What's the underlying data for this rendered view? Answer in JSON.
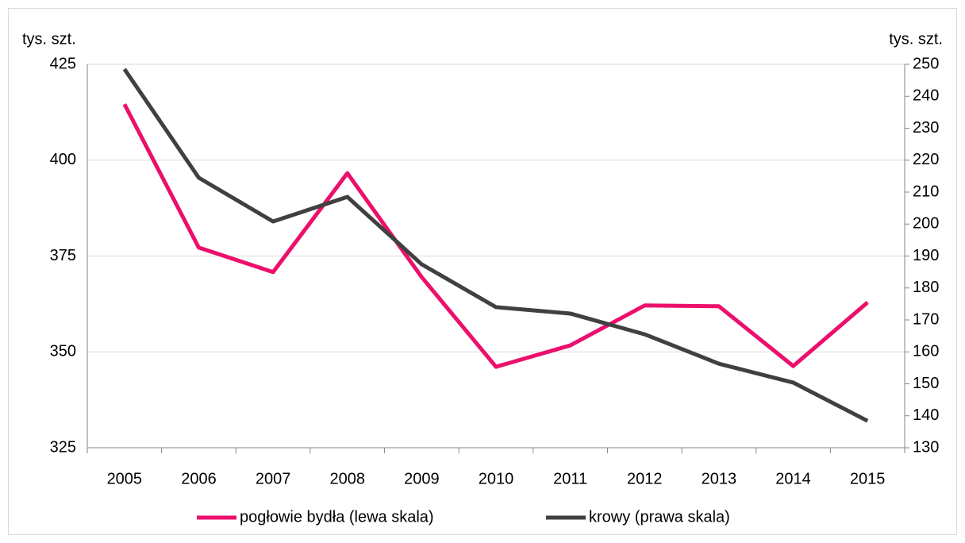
{
  "chart_data": {
    "type": "line",
    "ylabel": "tys. szt.",
    "y2label": "tys. szt.",
    "categories": [
      "2005",
      "2006",
      "2007",
      "2008",
      "2009",
      "2010",
      "2011",
      "2012",
      "2013",
      "2014",
      "2015"
    ],
    "series": [
      {
        "name": "pogłowie bydła (lewa skala)",
        "color": "#ec0f6c",
        "values": [
          414.6,
          377.2,
          370.8,
          396.6,
          369.5,
          346.1,
          351.7,
          362.1,
          361.9,
          346.3,
          362.9
        ]
      },
      {
        "name": "krowy  (prawa skala)",
        "color": "#404040",
        "axis": "y2",
        "values": [
          248.5,
          214.5,
          200.8,
          208.5,
          187.4,
          174,
          172,
          165.5,
          156.3,
          150.4,
          138.4
        ]
      }
    ],
    "ylim": [
      325,
      425
    ],
    "yticks": [
      325,
      350,
      375,
      400,
      425
    ],
    "y2lim": [
      130,
      250
    ],
    "y2ticks": [
      130,
      140,
      150,
      160,
      170,
      180,
      190,
      200,
      210,
      220,
      230,
      240,
      250
    ],
    "grid": true,
    "legend": "bottom"
  }
}
